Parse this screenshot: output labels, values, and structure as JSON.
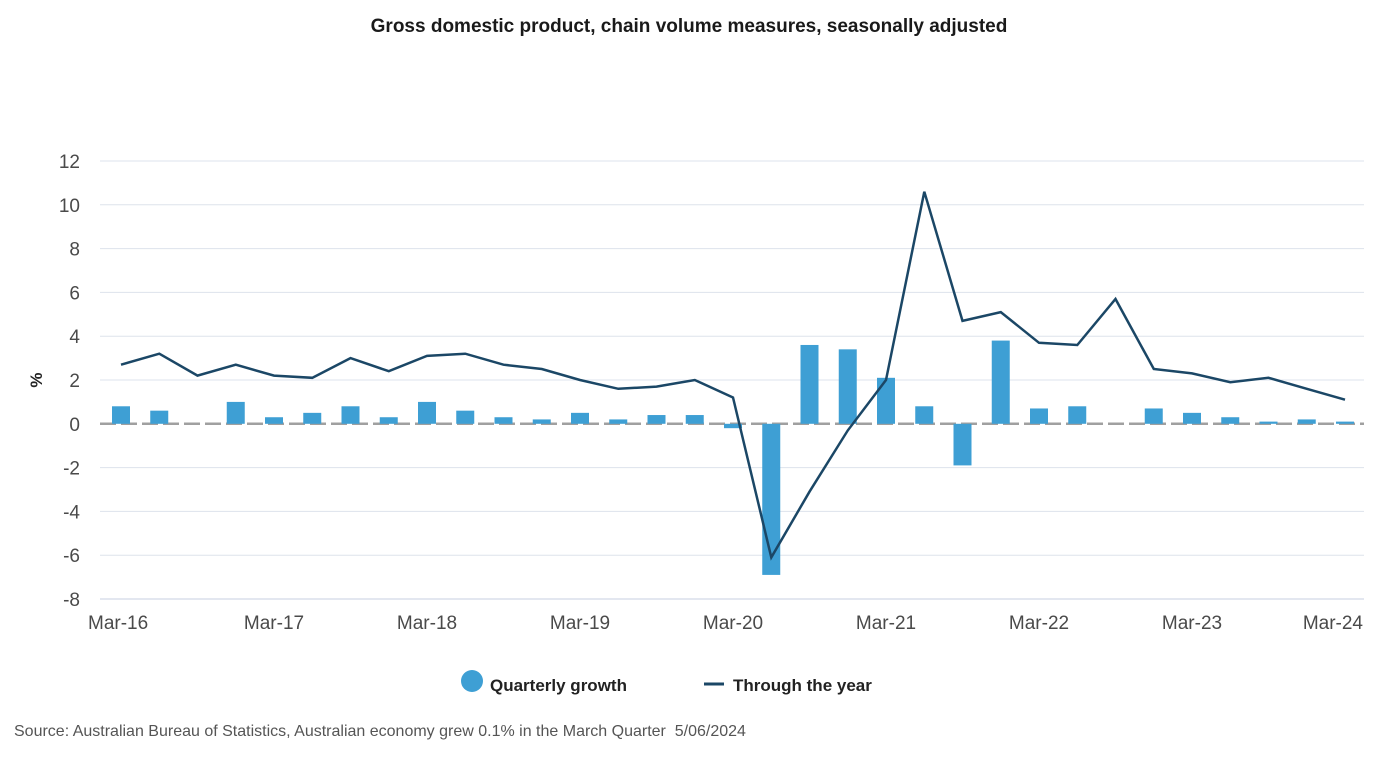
{
  "chart_data": {
    "type": "bar",
    "title": "Gross domestic product, chain volume measures, seasonally adjusted",
    "ylabel": "%",
    "xlabel": "",
    "ylim": [
      -8,
      12
    ],
    "yticks": [
      12,
      10,
      8,
      6,
      4,
      2,
      0,
      -2,
      -4,
      -6,
      -8
    ],
    "ytick_labels": [
      "12",
      "10",
      "8",
      "6",
      "4",
      "2",
      "0",
      "-2",
      "-4",
      "-6",
      "-8"
    ],
    "x": [
      "Mar-16",
      "Jun-16",
      "Sep-16",
      "Dec-16",
      "Mar-17",
      "Jun-17",
      "Sep-17",
      "Dec-17",
      "Mar-18",
      "Jun-18",
      "Sep-18",
      "Dec-18",
      "Mar-19",
      "Jun-19",
      "Sep-19",
      "Dec-19",
      "Mar-20",
      "Jun-20",
      "Sep-20",
      "Dec-20",
      "Mar-21",
      "Jun-21",
      "Sep-21",
      "Dec-21",
      "Mar-22",
      "Jun-22",
      "Sep-22",
      "Dec-22",
      "Mar-23",
      "Jun-23",
      "Sep-23",
      "Dec-23",
      "Mar-24"
    ],
    "xtick_labels": [
      "Mar-16",
      "Mar-17",
      "Mar-18",
      "Mar-19",
      "Mar-20",
      "Mar-21",
      "Mar-22",
      "Mar-23",
      "Mar-24"
    ],
    "grid": true,
    "legend_position": "bottom-center",
    "series": [
      {
        "name": "Quarterly growth",
        "kind": "bar",
        "color": "#3e9fd4",
        "values": [
          0.8,
          0.6,
          null,
          1.0,
          0.3,
          0.5,
          0.8,
          0.3,
          1.0,
          0.6,
          0.3,
          0.2,
          0.5,
          0.2,
          0.4,
          0.4,
          -0.2,
          -6.9,
          3.6,
          3.4,
          2.1,
          0.8,
          -1.9,
          3.8,
          0.7,
          0.8,
          null,
          0.7,
          0.5,
          0.3,
          0.1,
          0.2,
          0.1
        ]
      },
      {
        "name": "Through the year",
        "kind": "line",
        "color": "#1b4766",
        "values": [
          2.7,
          3.2,
          2.2,
          2.7,
          2.2,
          2.1,
          3.0,
          2.4,
          3.1,
          3.2,
          2.7,
          2.5,
          2.0,
          1.6,
          1.7,
          2.0,
          1.2,
          -6.1,
          -3.1,
          -0.3,
          2.0,
          10.6,
          4.7,
          5.1,
          3.7,
          3.6,
          5.7,
          2.5,
          2.3,
          1.9,
          2.1,
          1.6,
          1.1
        ]
      }
    ],
    "zero_line_color": "#a0a0a0",
    "grid_color": "#dde3ec"
  },
  "source_note": "Source: Australian Bureau of Statistics, Australian economy grew 0.1% in the March Quarter  5/06/2024"
}
